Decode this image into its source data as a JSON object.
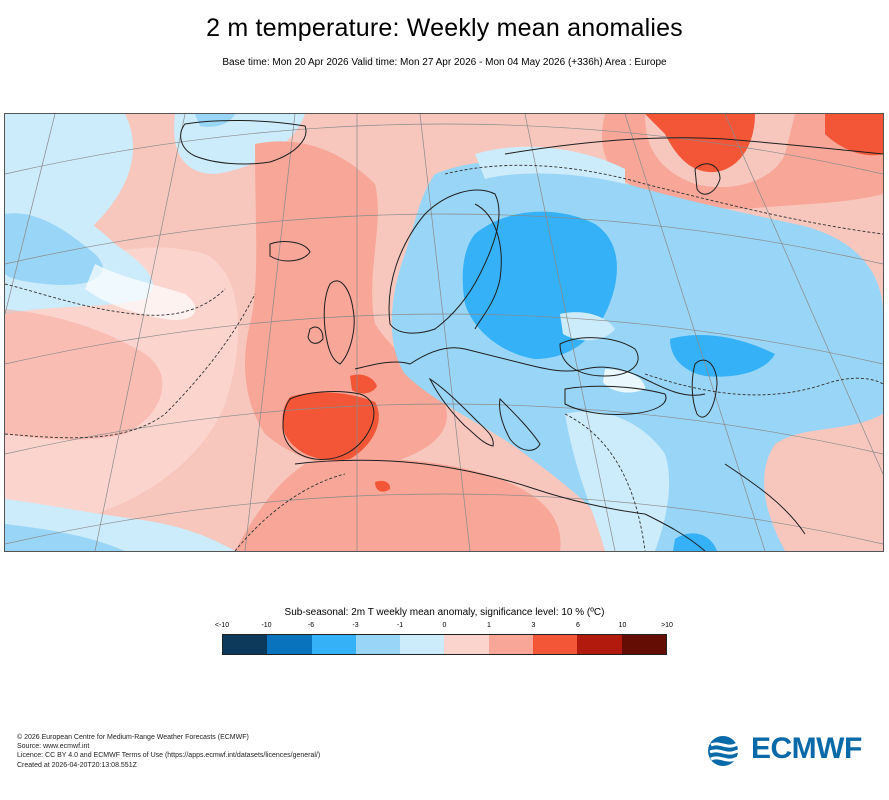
{
  "header": {
    "title": "2 m temperature: Weekly mean anomalies",
    "subtitle": "Base time: Mon 20 Apr 2026 Valid time: Mon 27 Apr 2026 - Mon 04 May 2026 (+336h) Area : Europe"
  },
  "map": {
    "region": "Europe",
    "colors": {
      "lt_minus10": "#0d3a5a",
      "minus10_minus6": "#0a73bd",
      "minus6_minus3": "#35b1f7",
      "minus3_minus1": "#98d5f6",
      "minus1_0": "#ccebfb",
      "zero_1": "#fcd4ce",
      "one_3": "#f7a697",
      "three_6": "#f35637",
      "six_10": "#b11a0d",
      "gt_10": "#640d05",
      "coastline": "#222222",
      "graticule": "#888888"
    }
  },
  "legend": {
    "title": "Sub-seasonal: 2m T weekly mean anomaly, significance level: 10 % (ºC)",
    "ticks": [
      "<-10",
      "-10",
      "-6",
      "-3",
      "-1",
      "0",
      "1",
      "3",
      "6",
      "10",
      ">10"
    ],
    "bins": [
      "#0d3a5a",
      "#0a73bd",
      "#35b1f7",
      "#98d5f6",
      "#ccebfb",
      "#fcd4ce",
      "#f7a697",
      "#f35637",
      "#b11a0d",
      "#640d05"
    ]
  },
  "footer": {
    "line1": "© 2026 European Centre for Medium-Range Weather Forecasts (ECMWF)",
    "line2": "Source: www.ecmwf.int",
    "line3": "Licence: CC BY 4.0 and ECMWF Terms of Use (https://apps.ecmwf.int/datasets/licences/general/)",
    "line4": "Created at 2026-04-20T20:13:08.551Z"
  },
  "logo": {
    "text": "ECMWF",
    "icon": "ecmwf-waves-icon",
    "color": "#0a69a8"
  }
}
